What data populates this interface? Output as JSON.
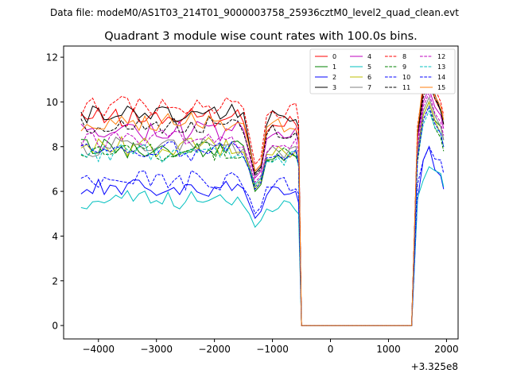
{
  "chart_data": {
    "type": "line",
    "suptitle": "Data file: modeM0/AS1T03_214T01_9000003758_25936cztM0_level2_quad_clean.evt",
    "title": "Quadrant 3 module wise count rates with 100.0s bins.",
    "xlabel": "",
    "ylabel": "",
    "x_offset_label": "+3.325e8",
    "xlim": [
      -4600,
      2200
    ],
    "ylim": [
      -0.6,
      12.5
    ],
    "x_ticks": [
      -4000,
      -3000,
      -2000,
      -1000,
      0,
      1000,
      2000
    ],
    "x_tick_labels": [
      "−4000",
      "−3000",
      "−2000",
      "−1000",
      "0",
      "1000",
      "2000"
    ],
    "y_ticks": [
      0,
      2,
      4,
      6,
      8,
      10,
      12
    ],
    "y_tick_labels": [
      "0",
      "2",
      "4",
      "6",
      "8",
      "10",
      "12"
    ],
    "grid": false,
    "legend": {
      "position": "top-right",
      "columns": 4
    },
    "series": [
      {
        "name": "0",
        "color": "#ff0000",
        "dash": "solid",
        "base": 9.3,
        "dip": 6.9,
        "peak": 11.0,
        "post": 9.0
      },
      {
        "name": "1",
        "color": "#008000",
        "dash": "solid",
        "base": 7.9,
        "dip": 6.0,
        "peak": 10.0,
        "post": 8.3
      },
      {
        "name": "2",
        "color": "#0000ff",
        "dash": "solid",
        "base": 6.1,
        "dip": 4.8,
        "peak": 8.0,
        "post": 6.1
      },
      {
        "name": "3",
        "color": "#000000",
        "dash": "solid",
        "base": 9.5,
        "dip": 6.8,
        "peak": 11.2,
        "post": 9.0
      },
      {
        "name": "4",
        "color": "#bf00bf",
        "dash": "solid",
        "base": 8.7,
        "dip": 6.6,
        "peak": 10.6,
        "post": 8.8
      },
      {
        "name": "5",
        "color": "#00bfbf",
        "dash": "solid",
        "base": 5.6,
        "dip": 4.4,
        "peak": 7.1,
        "post": 6.2
      },
      {
        "name": "6",
        "color": "#bfbf00",
        "dash": "solid",
        "base": 8.0,
        "dip": 6.1,
        "peak": 10.0,
        "post": 8.0
      },
      {
        "name": "7",
        "color": "#808080",
        "dash": "solid",
        "base": 8.0,
        "dip": 6.3,
        "peak": 10.2,
        "post": 8.3
      },
      {
        "name": "8",
        "color": "#ff0000",
        "dash": "dashed",
        "base": 9.8,
        "dip": 7.2,
        "peak": 11.3,
        "post": 9.4
      },
      {
        "name": "9",
        "color": "#008000",
        "dash": "dashed",
        "base": 7.8,
        "dip": 6.2,
        "peak": 9.8,
        "post": 7.8
      },
      {
        "name": "10",
        "color": "#0000ff",
        "dash": "dashed",
        "base": 6.5,
        "dip": 5.0,
        "peak": 8.0,
        "post": 6.8
      },
      {
        "name": "11",
        "color": "#000000",
        "dash": "dashed",
        "base": 8.9,
        "dip": 6.7,
        "peak": 10.8,
        "post": 9.0
      },
      {
        "name": "12",
        "color": "#bf00bf",
        "dash": "dashed",
        "base": 8.3,
        "dip": 6.4,
        "peak": 10.4,
        "post": 8.5
      },
      {
        "name": "13",
        "color": "#00bfbf",
        "dash": "dashed",
        "base": 7.7,
        "dip": 6.3,
        "peak": 9.6,
        "post": 8.0
      },
      {
        "name": "14",
        "color": "#0000ff",
        "dash": "dashed",
        "base": 7.8,
        "dip": 6.1,
        "peak": 9.8,
        "post": 8.0
      },
      {
        "name": "15",
        "color": "#ff7f0e",
        "dash": "solid",
        "base": 9.1,
        "dip": 6.9,
        "peak": 11.6,
        "post": 9.2
      }
    ]
  }
}
